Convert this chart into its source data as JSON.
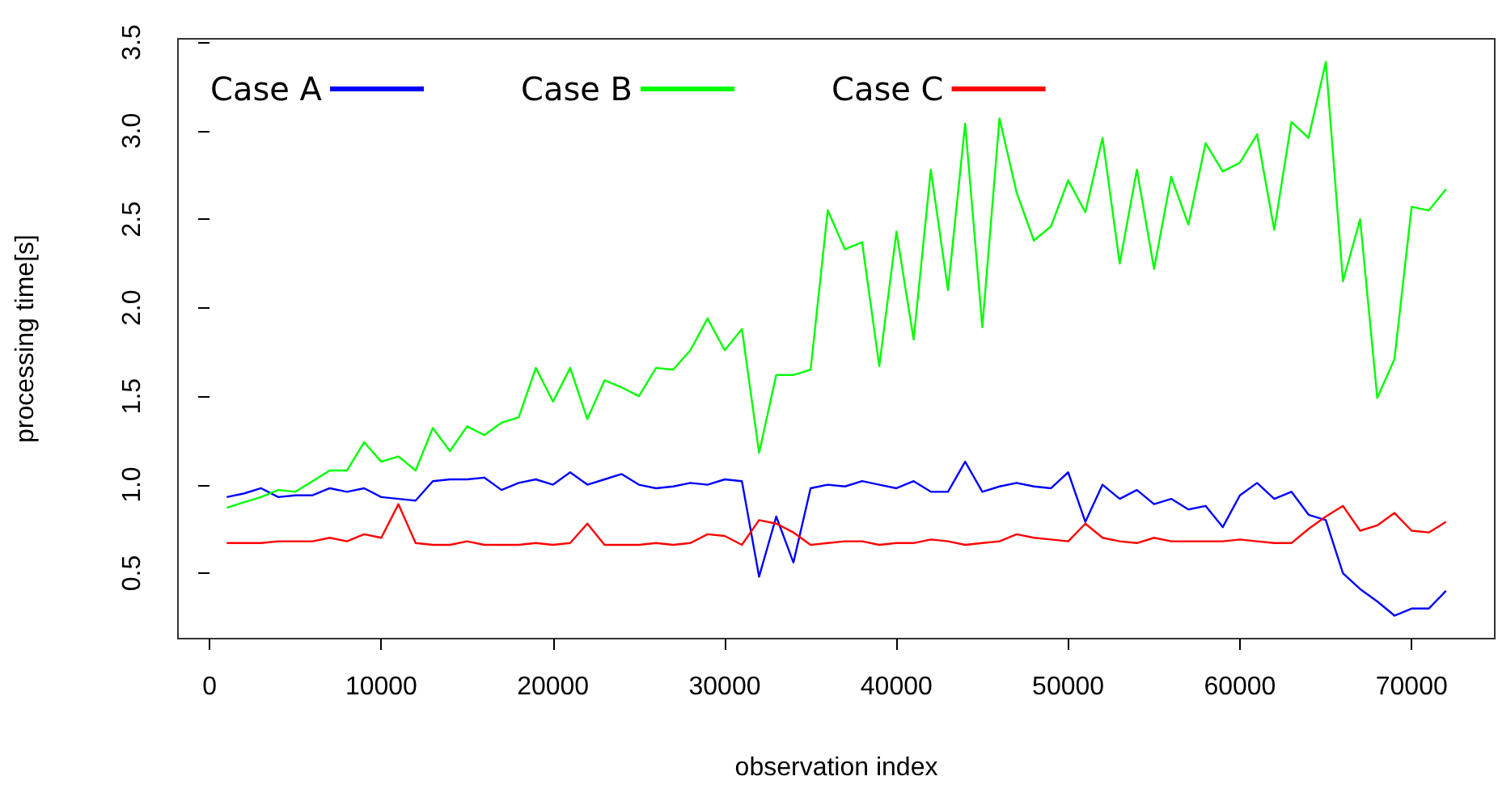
{
  "chart_data": {
    "type": "line",
    "xlabel": "observation index",
    "ylabel": "processing time[s]",
    "x": [
      1000,
      2000,
      3000,
      4000,
      5000,
      6000,
      7000,
      8000,
      9000,
      10000,
      11000,
      12000,
      13000,
      14000,
      15000,
      16000,
      17000,
      18000,
      19000,
      20000,
      21000,
      22000,
      23000,
      24000,
      25000,
      26000,
      27000,
      28000,
      29000,
      30000,
      31000,
      32000,
      33000,
      34000,
      35000,
      36000,
      37000,
      38000,
      39000,
      40000,
      41000,
      42000,
      43000,
      44000,
      45000,
      46000,
      47000,
      48000,
      49000,
      50000,
      51000,
      52000,
      53000,
      54000,
      55000,
      56000,
      57000,
      58000,
      59000,
      60000,
      61000,
      62000,
      63000,
      64000,
      65000,
      66000,
      67000,
      68000,
      69000,
      70000,
      71000,
      72000
    ],
    "series": [
      {
        "name": "Case A",
        "color": "#0000ff",
        "values": [
          0.93,
          0.95,
          0.98,
          0.93,
          0.94,
          0.94,
          0.98,
          0.96,
          0.98,
          0.93,
          0.92,
          0.91,
          1.02,
          1.03,
          1.03,
          1.04,
          0.97,
          1.01,
          1.03,
          1.0,
          1.07,
          1.0,
          1.03,
          1.06,
          1.0,
          0.98,
          0.99,
          1.01,
          1.0,
          1.03,
          1.02,
          0.48,
          0.82,
          0.56,
          0.98,
          1.0,
          0.99,
          1.02,
          1.0,
          0.98,
          1.02,
          0.96,
          0.96,
          1.13,
          0.96,
          0.99,
          1.01,
          0.99,
          0.98,
          1.07,
          0.79,
          1.0,
          0.92,
          0.97,
          0.89,
          0.92,
          0.86,
          0.88,
          0.76,
          0.94,
          1.01,
          0.92,
          0.96,
          0.83,
          0.8,
          0.5,
          0.41,
          0.34,
          0.26,
          0.3,
          0.3,
          0.4
        ]
      },
      {
        "name": "Case B",
        "color": "#00ff00",
        "values": [
          0.87,
          0.9,
          0.93,
          0.97,
          0.96,
          1.02,
          1.08,
          1.08,
          1.24,
          1.13,
          1.16,
          1.08,
          1.32,
          1.19,
          1.33,
          1.28,
          1.35,
          1.38,
          1.66,
          1.47,
          1.66,
          1.37,
          1.59,
          1.55,
          1.5,
          1.66,
          1.65,
          1.76,
          1.94,
          1.76,
          1.88,
          1.18,
          1.62,
          1.62,
          1.65,
          2.55,
          2.33,
          2.37,
          1.67,
          2.43,
          1.82,
          2.78,
          2.1,
          3.04,
          1.89,
          3.07,
          2.65,
          2.38,
          2.46,
          2.72,
          2.54,
          2.96,
          2.25,
          2.78,
          2.22,
          2.74,
          2.47,
          2.93,
          2.77,
          2.82,
          2.98,
          2.44,
          3.05,
          2.96,
          3.39,
          2.15,
          2.5,
          1.49,
          1.71,
          2.57,
          2.55,
          2.67
        ]
      },
      {
        "name": "Case C",
        "color": "#ff0000",
        "values": [
          0.67,
          0.67,
          0.67,
          0.68,
          0.68,
          0.68,
          0.7,
          0.68,
          0.72,
          0.7,
          0.89,
          0.67,
          0.66,
          0.66,
          0.68,
          0.66,
          0.66,
          0.66,
          0.67,
          0.66,
          0.67,
          0.78,
          0.66,
          0.66,
          0.66,
          0.67,
          0.66,
          0.67,
          0.72,
          0.71,
          0.66,
          0.8,
          0.78,
          0.73,
          0.66,
          0.67,
          0.68,
          0.68,
          0.66,
          0.67,
          0.67,
          0.69,
          0.68,
          0.66,
          0.67,
          0.68,
          0.72,
          0.7,
          0.69,
          0.68,
          0.78,
          0.7,
          0.68,
          0.67,
          0.7,
          0.68,
          0.68,
          0.68,
          0.68,
          0.69,
          0.68,
          0.67,
          0.67,
          0.75,
          0.82,
          0.88,
          0.74,
          0.77,
          0.84,
          0.74,
          0.73,
          0.79
        ]
      }
    ],
    "xlim": [
      -1840,
      74840
    ],
    "xticks": [
      0,
      10000,
      20000,
      30000,
      40000,
      50000,
      60000,
      70000
    ],
    "ylim": [
      0.13,
      3.52
    ],
    "yticks": [
      0.5,
      {
        "value": 1,
        "label": "1.0"
      },
      1.5,
      {
        "value": 2,
        "label": "2.0"
      },
      2.5,
      {
        "value": 3,
        "label": "3.0"
      },
      3.5
    ],
    "grid": false,
    "legend": "top left",
    "marker": "none",
    "line_style": "solid"
  }
}
